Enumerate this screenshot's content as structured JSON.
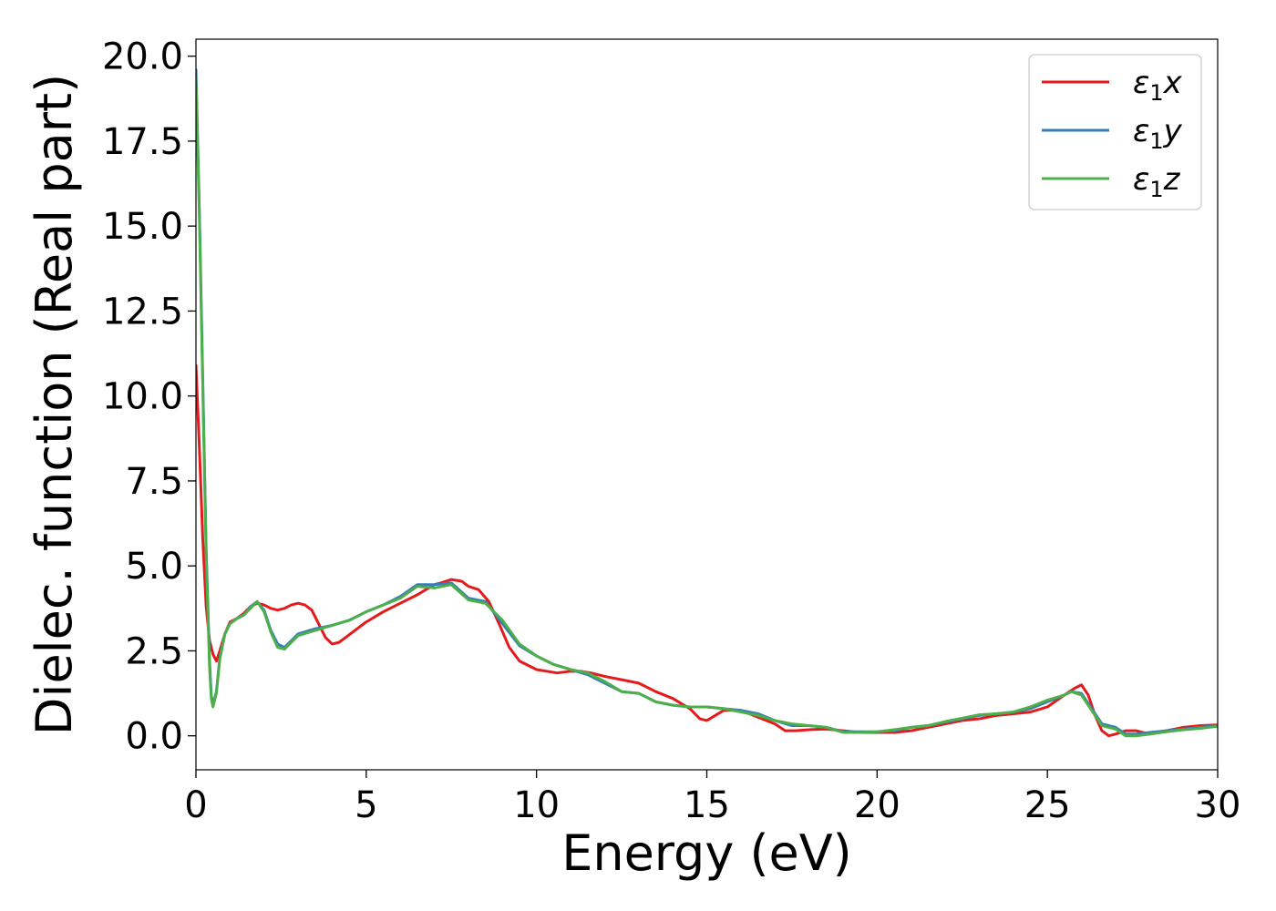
{
  "chart_data": {
    "type": "line",
    "title": "",
    "xlabel": "Energy (eV)",
    "ylabel": "Dielec. function (Real part)",
    "xlim": [
      0,
      30
    ],
    "ylim": [
      -1.0,
      20.5
    ],
    "xticks": [
      0,
      5,
      10,
      15,
      20,
      25,
      30
    ],
    "xtick_labels": [
      "0",
      "5",
      "10",
      "15",
      "20",
      "25",
      "30"
    ],
    "yticks": [
      0,
      2.5,
      5,
      7.5,
      10,
      12.5,
      15,
      17.5,
      20
    ],
    "ytick_labels": [
      "0.0",
      "2.5",
      "5.0",
      "7.5",
      "10.0",
      "12.5",
      "15.0",
      "17.5",
      "20.0"
    ],
    "grid": false,
    "legend_position": "top-right",
    "series": [
      {
        "name": "ε1x",
        "legend_base": "ε",
        "legend_sub": "1",
        "legend_suffix": "x",
        "color": "#e41a1c",
        "x": [
          0.0,
          0.1,
          0.2,
          0.3,
          0.4,
          0.5,
          0.6,
          0.7,
          0.85,
          1.0,
          1.2,
          1.4,
          1.6,
          1.8,
          2.0,
          2.2,
          2.4,
          2.6,
          2.8,
          3.0,
          3.2,
          3.4,
          3.6,
          3.8,
          4.0,
          4.2,
          4.4,
          4.6,
          4.8,
          5.0,
          5.5,
          6.0,
          6.5,
          7.0,
          7.2,
          7.5,
          7.8,
          8.0,
          8.3,
          8.6,
          8.9,
          9.2,
          9.5,
          9.8,
          10.0,
          10.3,
          10.6,
          11.0,
          11.3,
          11.6,
          12.0,
          12.5,
          13.0,
          13.5,
          14.0,
          14.5,
          14.8,
          15.0,
          15.5,
          16.0,
          16.5,
          17.0,
          17.3,
          17.6,
          18.0,
          18.5,
          19.0,
          19.5,
          20.0,
          20.5,
          21.0,
          21.5,
          22.0,
          22.5,
          23.0,
          23.5,
          24.0,
          24.5,
          25.0,
          25.5,
          25.8,
          26.0,
          26.2,
          26.4,
          26.6,
          26.8,
          27.0,
          27.3,
          27.6,
          28.0,
          28.5,
          29.0,
          29.5,
          30.0
        ],
        "y": [
          10.9,
          8.5,
          5.8,
          3.8,
          2.8,
          2.4,
          2.2,
          2.5,
          3.0,
          3.35,
          3.45,
          3.6,
          3.8,
          3.9,
          3.85,
          3.75,
          3.7,
          3.75,
          3.85,
          3.9,
          3.85,
          3.7,
          3.3,
          2.9,
          2.7,
          2.75,
          2.9,
          3.05,
          3.2,
          3.35,
          3.65,
          3.9,
          4.15,
          4.45,
          4.5,
          4.6,
          4.55,
          4.4,
          4.3,
          3.95,
          3.3,
          2.6,
          2.2,
          2.05,
          1.95,
          1.9,
          1.85,
          1.9,
          1.9,
          1.85,
          1.75,
          1.65,
          1.55,
          1.3,
          1.1,
          0.8,
          0.5,
          0.45,
          0.75,
          0.75,
          0.55,
          0.35,
          0.15,
          0.15,
          0.18,
          0.2,
          0.15,
          0.1,
          0.1,
          0.1,
          0.15,
          0.25,
          0.35,
          0.45,
          0.5,
          0.6,
          0.65,
          0.7,
          0.85,
          1.2,
          1.4,
          1.5,
          1.2,
          0.6,
          0.15,
          0.0,
          0.05,
          0.15,
          0.15,
          0.05,
          0.15,
          0.25,
          0.3,
          0.32
        ]
      },
      {
        "name": "ε1y",
        "legend_base": "ε",
        "legend_sub": "1",
        "legend_suffix": "y",
        "color": "#377eb8",
        "x": [
          0.0,
          0.1,
          0.2,
          0.3,
          0.4,
          0.45,
          0.5,
          0.6,
          0.7,
          0.85,
          1.0,
          1.2,
          1.4,
          1.6,
          1.8,
          2.0,
          2.2,
          2.4,
          2.6,
          2.8,
          3.0,
          3.5,
          4.0,
          4.5,
          5.0,
          5.5,
          6.0,
          6.5,
          7.0,
          7.5,
          8.0,
          8.5,
          9.0,
          9.5,
          10.0,
          10.5,
          11.0,
          11.5,
          12.0,
          12.5,
          13.0,
          13.5,
          14.0,
          14.5,
          15.0,
          15.5,
          16.0,
          16.5,
          17.0,
          17.5,
          18.0,
          18.5,
          19.0,
          19.5,
          20.0,
          20.5,
          21.0,
          21.5,
          22.0,
          22.5,
          23.0,
          23.5,
          24.0,
          24.5,
          25.0,
          25.5,
          25.7,
          26.0,
          26.3,
          26.6,
          27.0,
          27.3,
          27.6,
          28.0,
          28.5,
          29.0,
          29.5,
          30.0
        ],
        "y": [
          19.6,
          15.5,
          10.5,
          5.5,
          2.2,
          1.2,
          0.9,
          1.3,
          2.3,
          3.0,
          3.3,
          3.45,
          3.55,
          3.8,
          3.95,
          3.7,
          3.1,
          2.7,
          2.6,
          2.8,
          3.0,
          3.15,
          3.25,
          3.4,
          3.65,
          3.85,
          4.1,
          4.45,
          4.45,
          4.5,
          4.05,
          3.95,
          3.3,
          2.65,
          2.35,
          2.1,
          1.95,
          1.8,
          1.55,
          1.3,
          1.25,
          1.0,
          0.9,
          0.85,
          0.85,
          0.8,
          0.75,
          0.65,
          0.45,
          0.3,
          0.3,
          0.25,
          0.12,
          0.12,
          0.12,
          0.15,
          0.25,
          0.3,
          0.4,
          0.5,
          0.6,
          0.65,
          0.7,
          0.8,
          1.0,
          1.2,
          1.3,
          1.25,
          0.8,
          0.35,
          0.25,
          0.05,
          0.05,
          0.1,
          0.15,
          0.2,
          0.25,
          0.3
        ]
      },
      {
        "name": "ε1z",
        "legend_base": "ε",
        "legend_sub": "1",
        "legend_suffix": "z",
        "color": "#4daf4a",
        "x": [
          0.0,
          0.1,
          0.2,
          0.3,
          0.4,
          0.45,
          0.5,
          0.6,
          0.7,
          0.85,
          1.0,
          1.2,
          1.4,
          1.6,
          1.8,
          2.0,
          2.2,
          2.4,
          2.6,
          2.8,
          3.0,
          3.5,
          4.0,
          4.5,
          5.0,
          5.5,
          6.0,
          6.5,
          7.0,
          7.5,
          8.0,
          8.5,
          9.0,
          9.5,
          10.0,
          10.5,
          11.0,
          11.5,
          12.0,
          12.5,
          13.0,
          13.5,
          14.0,
          14.5,
          15.0,
          15.5,
          16.0,
          16.5,
          17.0,
          17.5,
          18.0,
          18.5,
          19.0,
          19.5,
          20.0,
          20.5,
          21.0,
          21.5,
          22.0,
          22.5,
          23.0,
          23.5,
          24.0,
          24.5,
          25.0,
          25.5,
          25.7,
          26.0,
          26.3,
          26.6,
          27.0,
          27.3,
          27.6,
          28.0,
          28.5,
          29.0,
          29.5,
          30.0
        ],
        "y": [
          19.4,
          15.3,
          10.3,
          5.3,
          2.0,
          1.1,
          0.85,
          1.25,
          2.25,
          3.0,
          3.3,
          3.45,
          3.55,
          3.75,
          3.95,
          3.65,
          3.05,
          2.6,
          2.55,
          2.75,
          2.95,
          3.1,
          3.25,
          3.4,
          3.65,
          3.85,
          4.05,
          4.4,
          4.35,
          4.45,
          4.0,
          3.9,
          3.4,
          2.7,
          2.35,
          2.1,
          1.95,
          1.85,
          1.6,
          1.3,
          1.25,
          1.0,
          0.9,
          0.85,
          0.85,
          0.8,
          0.7,
          0.6,
          0.45,
          0.35,
          0.3,
          0.25,
          0.1,
          0.1,
          0.12,
          0.18,
          0.25,
          0.3,
          0.42,
          0.52,
          0.62,
          0.65,
          0.7,
          0.85,
          1.05,
          1.2,
          1.3,
          1.2,
          0.75,
          0.3,
          0.2,
          0.0,
          0.0,
          0.05,
          0.12,
          0.18,
          0.22,
          0.28
        ]
      }
    ]
  }
}
